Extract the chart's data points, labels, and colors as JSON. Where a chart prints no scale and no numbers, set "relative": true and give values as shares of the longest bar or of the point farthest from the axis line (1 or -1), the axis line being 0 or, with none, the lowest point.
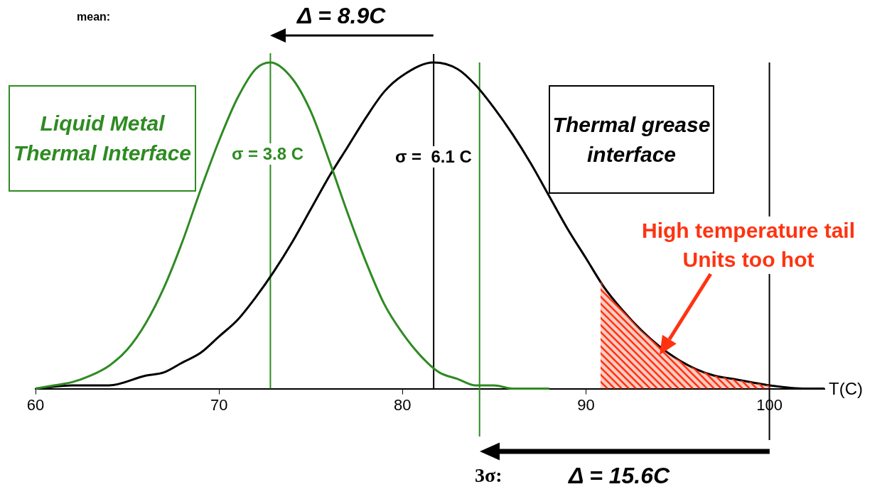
{
  "chart_data": {
    "type": "line",
    "relative": true,
    "xlabel": "T(C)",
    "xlim": [
      60,
      103
    ],
    "xticks": [
      60,
      70,
      80,
      90,
      100
    ],
    "series": [
      {
        "name": "Liquid Metal Thermal Interface",
        "color": "#2e8b22",
        "x": [
          60,
          61,
          62,
          63,
          64,
          65,
          66,
          67,
          68,
          69,
          70,
          71,
          72,
          72.8,
          74,
          75,
          76,
          77,
          78,
          79,
          80,
          81,
          82,
          83,
          84,
          85,
          86,
          88
        ],
        "values": [
          0,
          0.01,
          0.02,
          0.04,
          0.07,
          0.12,
          0.2,
          0.31,
          0.45,
          0.61,
          0.76,
          0.89,
          0.98,
          1,
          0.95,
          0.85,
          0.7,
          0.54,
          0.39,
          0.26,
          0.17,
          0.1,
          0.05,
          0.03,
          0.01,
          0.01,
          0,
          0
        ]
      },
      {
        "name": "Thermal grease interface",
        "color": "#000000",
        "x": [
          60,
          62,
          64,
          66,
          67,
          68,
          69,
          70,
          71,
          72,
          73,
          74,
          75,
          76,
          77,
          78,
          79,
          80,
          81.7,
          83,
          84,
          85,
          86,
          87,
          88,
          89,
          90,
          91,
          92,
          93,
          94,
          95,
          96,
          97,
          98,
          99,
          100,
          102,
          103
        ],
        "values": [
          0,
          0.01,
          0.01,
          0.04,
          0.05,
          0.08,
          0.11,
          0.16,
          0.21,
          0.28,
          0.36,
          0.45,
          0.55,
          0.65,
          0.74,
          0.83,
          0.91,
          0.96,
          1,
          0.98,
          0.93,
          0.86,
          0.78,
          0.69,
          0.59,
          0.49,
          0.4,
          0.31,
          0.24,
          0.18,
          0.13,
          0.09,
          0.06,
          0.04,
          0.03,
          0.02,
          0.01,
          0,
          0
        ]
      },
      {
        "type": "area",
        "color": "#ff3311",
        "x": [
          90.8,
          91,
          92,
          93,
          94,
          95,
          96,
          97,
          98,
          99,
          100
        ],
        "values": [
          0.33,
          0.31,
          0.24,
          0.18,
          0.13,
          0.09,
          0.06,
          0.04,
          0.03,
          0.02,
          0.01
        ]
      }
    ],
    "ref_lines": [
      {
        "axis": "x",
        "value": 72.8,
        "color": "#2e8b22"
      },
      {
        "axis": "x",
        "value": 81.7,
        "color": "#000000"
      },
      {
        "axis": "x",
        "value": 84.2,
        "color": "#2e8b22"
      },
      {
        "axis": "x",
        "value": 100,
        "color": "#000000"
      }
    ],
    "annotations": [
      "mean:",
      "Δ = 8.9C",
      "3σ:",
      "Δ = 15.6C",
      "σ = 3.8 C",
      "σ =  6.1 C",
      "High temperature tail\nUnits too hot"
    ]
  }
}
